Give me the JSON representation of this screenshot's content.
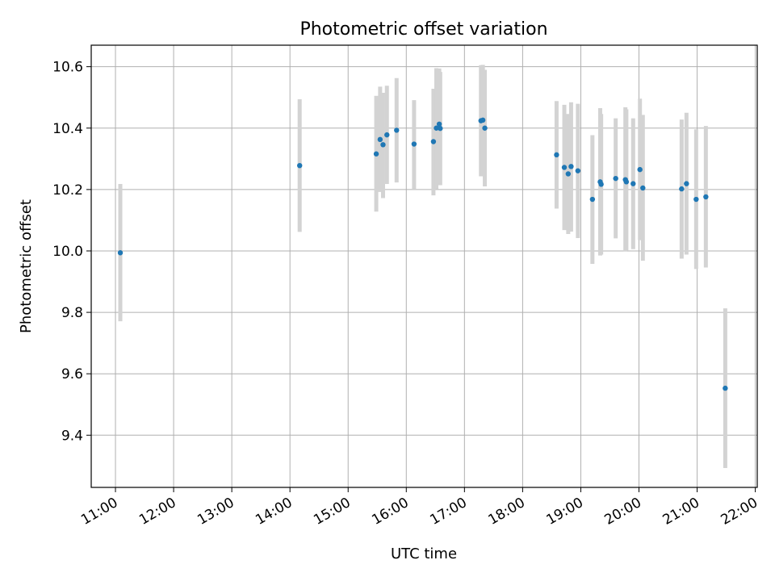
{
  "chart_data": {
    "type": "scatter",
    "title": "Photometric offset variation",
    "xlabel": "UTC time",
    "ylabel": "Photometric offset",
    "x_tick_labels": [
      "11:00",
      "12:00",
      "13:00",
      "14:00",
      "15:00",
      "16:00",
      "17:00",
      "18:00",
      "19:00",
      "20:00",
      "21:00",
      "22:00"
    ],
    "x_tick_hours": [
      11,
      12,
      13,
      14,
      15,
      16,
      17,
      18,
      19,
      20,
      21,
      22
    ],
    "xlim": [
      "10:35",
      "22:02"
    ],
    "y_ticks": [
      9.4,
      9.6,
      9.8,
      10.0,
      10.2,
      10.4,
      10.6
    ],
    "y_tick_labels": [
      "9.4",
      "9.6",
      "9.8",
      "10.0",
      "10.2",
      "10.4",
      "10.6"
    ],
    "ylim": [
      9.23,
      10.67
    ],
    "grid": true,
    "colors": {
      "point": "#1f77b4",
      "errorbar": "#d3d3d3",
      "grid": "#b0b0b0"
    },
    "series": [
      {
        "points": [
          {
            "x": "11:05",
            "y": 9.994,
            "lo": 9.771,
            "hi": 10.218
          },
          {
            "x": "14:10",
            "y": 10.278,
            "lo": 10.062,
            "hi": 10.494
          },
          {
            "x": "15:29",
            "y": 10.316,
            "lo": 10.128,
            "hi": 10.505
          },
          {
            "x": "15:33",
            "y": 10.363,
            "lo": 10.192,
            "hi": 10.535
          },
          {
            "x": "15:36",
            "y": 10.346,
            "lo": 10.172,
            "hi": 10.515
          },
          {
            "x": "15:40",
            "y": 10.378,
            "lo": 10.218,
            "hi": 10.538
          },
          {
            "x": "15:50",
            "y": 10.393,
            "lo": 10.223,
            "hi": 10.563
          },
          {
            "x": "16:08",
            "y": 10.348,
            "lo": 10.2,
            "hi": 10.491
          },
          {
            "x": "16:28",
            "y": 10.356,
            "lo": 10.181,
            "hi": 10.528
          },
          {
            "x": "16:31",
            "y": 10.4,
            "lo": 10.202,
            "hi": 10.595
          },
          {
            "x": "16:34",
            "y": 10.413,
            "lo": 10.232,
            "hi": 10.594
          },
          {
            "x": "16:35",
            "y": 10.399,
            "lo": 10.214,
            "hi": 10.583
          },
          {
            "x": "17:17",
            "y": 10.424,
            "lo": 10.243,
            "hi": 10.605
          },
          {
            "x": "17:19",
            "y": 10.426,
            "lo": 10.245,
            "hi": 10.606
          },
          {
            "x": "17:21",
            "y": 10.4,
            "lo": 10.21,
            "hi": 10.59
          },
          {
            "x": "18:35",
            "y": 10.313,
            "lo": 10.138,
            "hi": 10.488
          },
          {
            "x": "18:43",
            "y": 10.272,
            "lo": 10.068,
            "hi": 10.476
          },
          {
            "x": "18:47",
            "y": 10.251,
            "lo": 10.055,
            "hi": 10.446
          },
          {
            "x": "18:50",
            "y": 10.275,
            "lo": 10.063,
            "hi": 10.484
          },
          {
            "x": "18:57",
            "y": 10.261,
            "lo": 10.042,
            "hi": 10.479
          },
          {
            "x": "19:12",
            "y": 10.168,
            "lo": 9.958,
            "hi": 10.377
          },
          {
            "x": "19:20",
            "y": 10.225,
            "lo": 9.985,
            "hi": 10.465
          },
          {
            "x": "19:21",
            "y": 10.217,
            "lo": 9.988,
            "hi": 10.446
          },
          {
            "x": "19:36",
            "y": 10.236,
            "lo": 10.041,
            "hi": 10.432
          },
          {
            "x": "19:46",
            "y": 10.232,
            "lo": 9.998,
            "hi": 10.468
          },
          {
            "x": "19:47",
            "y": 10.225,
            "lo": 10.002,
            "hi": 10.461
          },
          {
            "x": "19:54",
            "y": 10.219,
            "lo": 10.006,
            "hi": 10.432
          },
          {
            "x": "20:01",
            "y": 10.265,
            "lo": 10.035,
            "hi": 10.496
          },
          {
            "x": "20:04",
            "y": 10.205,
            "lo": 9.968,
            "hi": 10.443
          },
          {
            "x": "20:44",
            "y": 10.202,
            "lo": 9.975,
            "hi": 10.428
          },
          {
            "x": "20:49",
            "y": 10.219,
            "lo": 9.988,
            "hi": 10.45
          },
          {
            "x": "20:59",
            "y": 10.168,
            "lo": 9.941,
            "hi": 10.396
          },
          {
            "x": "21:09",
            "y": 10.176,
            "lo": 9.946,
            "hi": 10.407
          },
          {
            "x": "21:29",
            "y": 9.553,
            "lo": 9.293,
            "hi": 9.813
          }
        ]
      }
    ]
  }
}
